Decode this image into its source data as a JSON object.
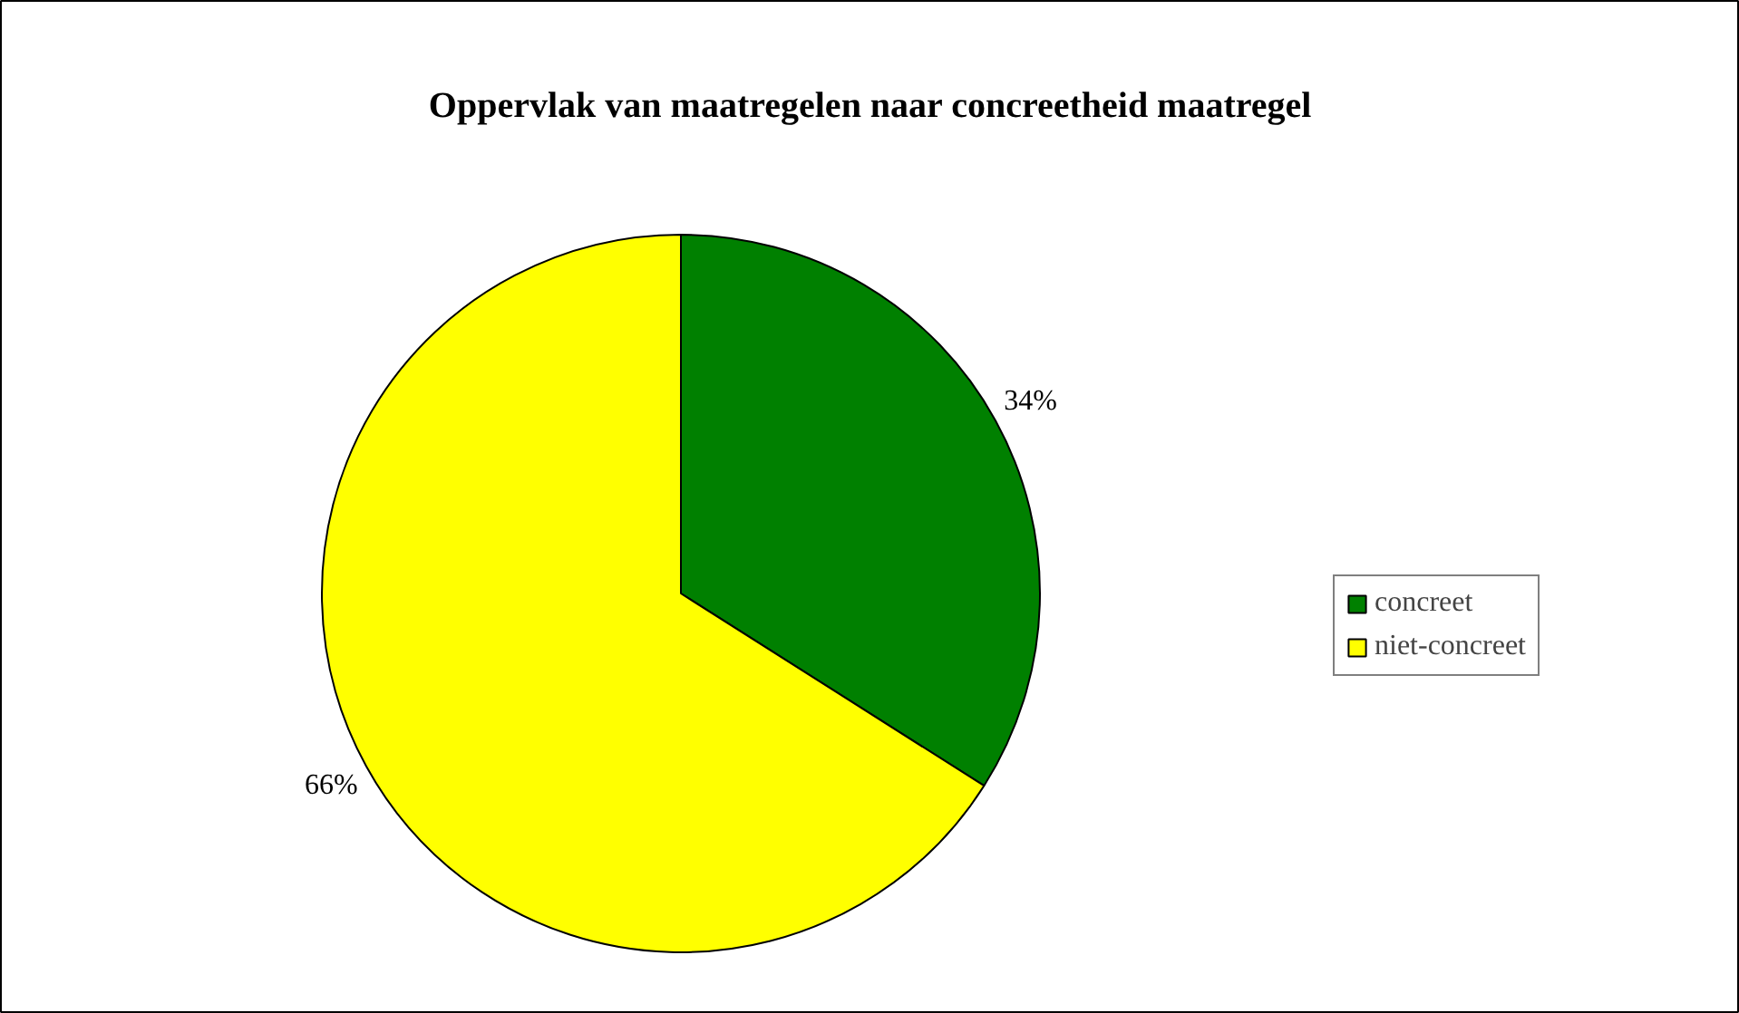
{
  "chart_data": {
    "type": "pie",
    "title": "Oppervlak van maatregelen naar concreetheid maatregel",
    "categories": [
      "concreet",
      "niet-concreet"
    ],
    "values": [
      34,
      66
    ],
    "colors": [
      "#008000",
      "#ffff00"
    ],
    "value_labels": [
      "34%",
      "66%"
    ],
    "legend": "right"
  }
}
